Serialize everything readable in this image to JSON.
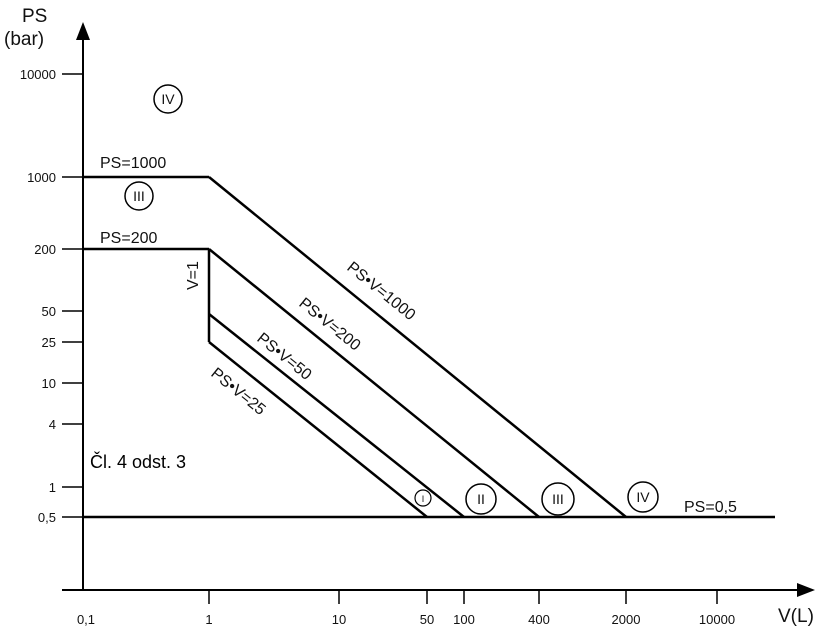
{
  "diagram": {
    "y_axis_title_line1": "PS",
    "y_axis_title_line2": "(bar)",
    "x_axis_title": "V(L)",
    "y_ticks": [
      "10000",
      "1000",
      "200",
      "50",
      "25",
      "10",
      "4",
      "1",
      "0,5"
    ],
    "x_ticks": [
      "0,1",
      "1",
      "10",
      "50",
      "100",
      "400",
      "2000",
      "10000"
    ],
    "line_labels": {
      "ps1000": "PS=1000",
      "ps200": "PS=200",
      "ps05": "PS=0,5",
      "v1": "V=1",
      "psv1000": "PS•V=1000",
      "psv200": "PS•V=200",
      "psv50": "PS•V=50",
      "psv25": "PS•V=25"
    },
    "categories": {
      "top": "IV",
      "upper": "III",
      "c1": "I",
      "c2": "II",
      "c3": "III",
      "c4": "IV"
    },
    "note": "Čl. 4 odst. 3"
  }
}
